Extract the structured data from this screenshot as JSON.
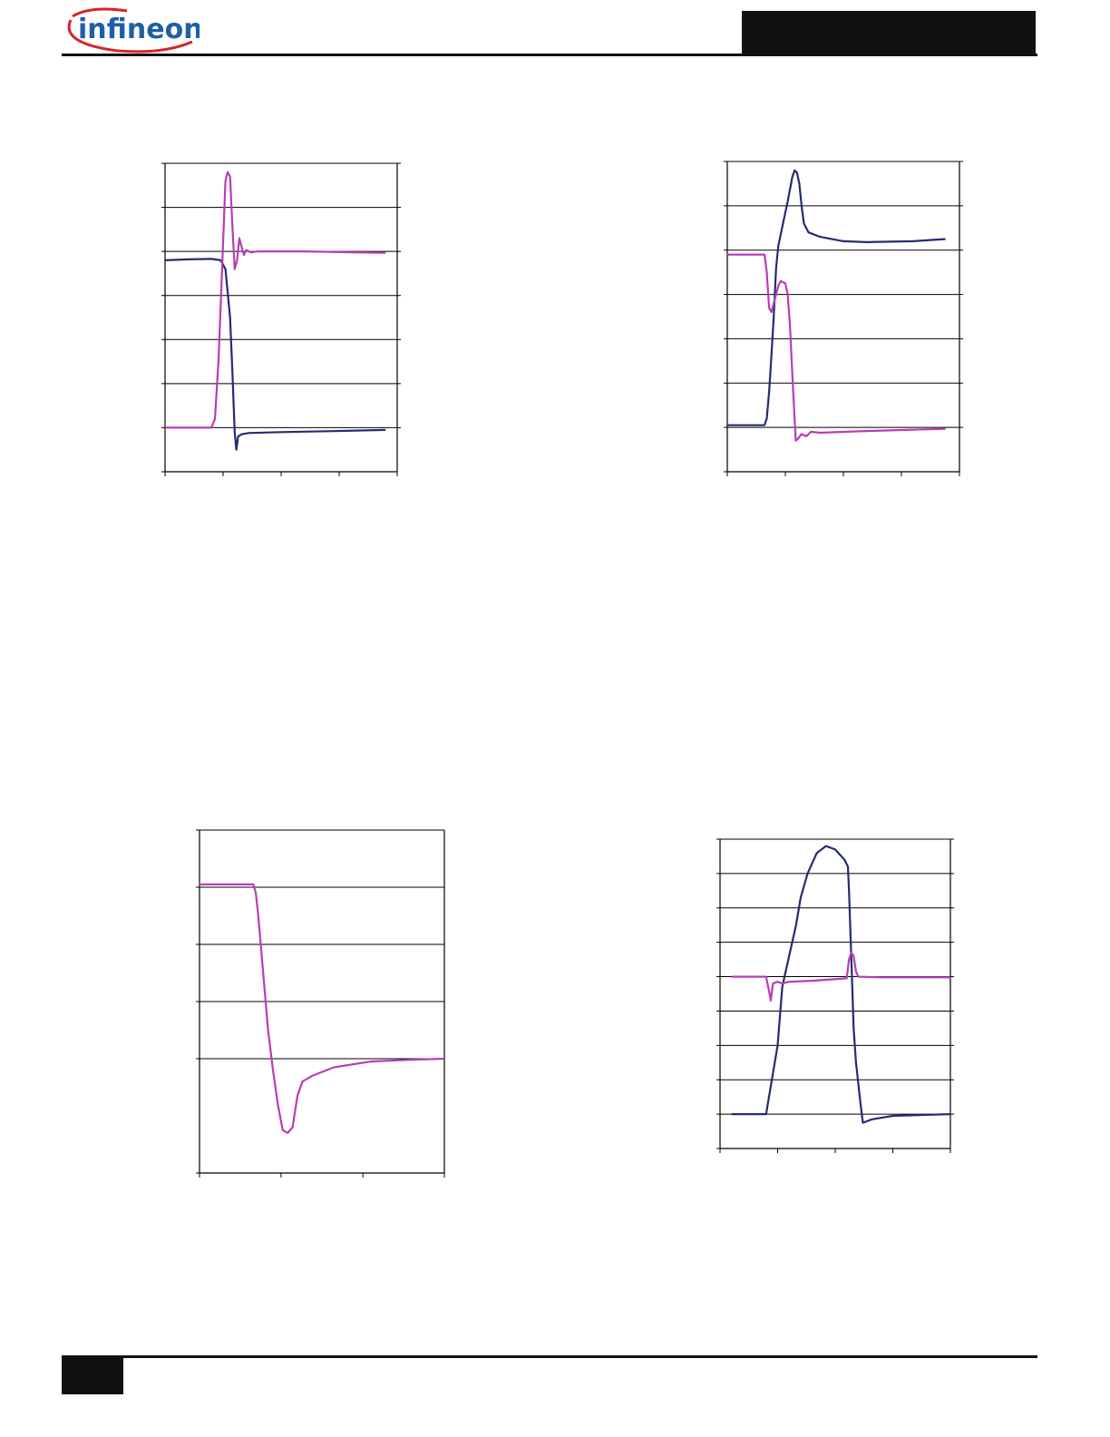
{
  "header": {
    "logo_text": "infineon"
  },
  "colors": {
    "blue_trace": "#242c70",
    "magenta_trace": "#b83db5"
  },
  "chart_data": [
    {
      "type": "line",
      "xlim": [
        0,
        100
      ],
      "ylim": [
        0,
        7
      ],
      "y2lim": [
        0,
        7
      ],
      "x_ticks": [
        0,
        25,
        50,
        75,
        100
      ],
      "y_gridlines": [
        1,
        2,
        3,
        4,
        5,
        6,
        7
      ],
      "series": [
        {
          "color": "#242c70",
          "points": [
            [
              0,
              4.8
            ],
            [
              10,
              4.82
            ],
            [
              20,
              4.83
            ],
            [
              24,
              4.8
            ],
            [
              26,
              4.6
            ],
            [
              28,
              3.5
            ],
            [
              29,
              2.3
            ],
            [
              30,
              0.9
            ],
            [
              30.7,
              0.5
            ],
            [
              31.5,
              0.8
            ],
            [
              33,
              0.85
            ],
            [
              36,
              0.88
            ],
            [
              50,
              0.9
            ],
            [
              70,
              0.92
            ],
            [
              95,
              0.95
            ]
          ]
        },
        {
          "color": "#b83db5",
          "points": [
            [
              0,
              1
            ],
            [
              15,
              1
            ],
            [
              20,
              1
            ],
            [
              21.5,
              1.2
            ],
            [
              23,
              2.5
            ],
            [
              24.5,
              4.5
            ],
            [
              26,
              6.6
            ],
            [
              27,
              6.8
            ],
            [
              28,
              6.7
            ],
            [
              29,
              5.6
            ],
            [
              30,
              4.6
            ],
            [
              31,
              4.8
            ],
            [
              32,
              5.3
            ],
            [
              33,
              5.1
            ],
            [
              34,
              4.92
            ],
            [
              35,
              5.03
            ],
            [
              37,
              4.98
            ],
            [
              40,
              5
            ],
            [
              60,
              5
            ],
            [
              80,
              4.98
            ],
            [
              95,
              4.97
            ]
          ]
        }
      ]
    },
    {
      "type": "line",
      "xlim": [
        0,
        100
      ],
      "ylim": [
        0,
        7
      ],
      "y2lim": [
        0,
        7
      ],
      "x_ticks": [
        0,
        25,
        50,
        75,
        100
      ],
      "y_gridlines": [
        1,
        2,
        3,
        4,
        5,
        6,
        7
      ],
      "series": [
        {
          "color": "#242c70",
          "points": [
            [
              0,
              1.05
            ],
            [
              16,
              1.05
            ],
            [
              17,
              1.2
            ],
            [
              18,
              1.8
            ],
            [
              19,
              2.6
            ],
            [
              20,
              3.5
            ],
            [
              21,
              4.6
            ],
            [
              22,
              5.1
            ],
            [
              24,
              5.6
            ],
            [
              26,
              6.1
            ],
            [
              28,
              6.65
            ],
            [
              29,
              6.8
            ],
            [
              30,
              6.75
            ],
            [
              31,
              6.5
            ],
            [
              32,
              6
            ],
            [
              33,
              5.6
            ],
            [
              35,
              5.4
            ],
            [
              40,
              5.3
            ],
            [
              50,
              5.2
            ],
            [
              60,
              5.18
            ],
            [
              80,
              5.2
            ],
            [
              94,
              5.25
            ]
          ]
        },
        {
          "color": "#b83db5",
          "points": [
            [
              0,
              4.9
            ],
            [
              16,
              4.9
            ],
            [
              17,
              4.5
            ],
            [
              18,
              3.7
            ],
            [
              19,
              3.6
            ],
            [
              20,
              3.8
            ],
            [
              21,
              4
            ],
            [
              22,
              4.2
            ],
            [
              23,
              4.3
            ],
            [
              25,
              4.25
            ],
            [
              26,
              4
            ],
            [
              27,
              3.3
            ],
            [
              28,
              2.2
            ],
            [
              29,
              1.2
            ],
            [
              29.5,
              0.7
            ],
            [
              30,
              0.72
            ],
            [
              32,
              0.85
            ],
            [
              34,
              0.8
            ],
            [
              36,
              0.9
            ],
            [
              40,
              0.88
            ],
            [
              60,
              0.92
            ],
            [
              80,
              0.95
            ],
            [
              94,
              0.97
            ]
          ]
        }
      ]
    },
    {
      "type": "line",
      "xlim": [
        0,
        100
      ],
      "ylim": [
        0,
        6
      ],
      "x_ticks": [
        0,
        33.3,
        66.7,
        100
      ],
      "y_gridlines": [
        2,
        3,
        4,
        5,
        6
      ],
      "series": [
        {
          "color": "#b83db5",
          "points": [
            [
              0,
              5.05
            ],
            [
              10,
              5.05
            ],
            [
              22,
              5.05
            ],
            [
              23,
              4.9
            ],
            [
              24,
              4.5
            ],
            [
              26,
              3.5
            ],
            [
              28,
              2.5
            ],
            [
              30,
              1.8
            ],
            [
              32,
              1.2
            ],
            [
              34,
              0.75
            ],
            [
              36,
              0.7
            ],
            [
              38,
              0.8
            ],
            [
              40,
              1.35
            ],
            [
              42,
              1.6
            ],
            [
              46,
              1.7
            ],
            [
              55,
              1.85
            ],
            [
              70,
              1.95
            ],
            [
              85,
              1.98
            ],
            [
              100,
              2
            ]
          ]
        }
      ]
    },
    {
      "type": "line",
      "xlim": [
        0,
        100
      ],
      "ylim": [
        0,
        9
      ],
      "y2lim": [
        0,
        9
      ],
      "x_ticks": [
        0,
        25,
        50,
        75,
        100
      ],
      "y_gridlines": [
        1,
        2,
        3,
        4,
        5,
        6,
        7,
        8,
        9
      ],
      "series": [
        {
          "color": "#242c70",
          "points": [
            [
              5,
              1
            ],
            [
              20,
              1
            ],
            [
              25,
              3
            ],
            [
              27,
              4.7
            ],
            [
              30,
              5.6
            ],
            [
              33,
              6.5
            ],
            [
              35,
              7.3
            ],
            [
              38,
              8
            ],
            [
              42,
              8.6
            ],
            [
              46,
              8.8
            ],
            [
              50,
              8.7
            ],
            [
              54,
              8.4
            ],
            [
              55.5,
              8.2
            ],
            [
              56,
              7.5
            ],
            [
              57,
              5.5
            ],
            [
              58,
              3.5
            ],
            [
              59,
              2.5
            ],
            [
              60,
              1.9
            ],
            [
              61,
              1.3
            ],
            [
              62,
              0.75
            ],
            [
              66,
              0.85
            ],
            [
              75,
              0.95
            ],
            [
              100,
              1
            ]
          ]
        },
        {
          "color": "#b83db5",
          "points": [
            [
              5,
              5
            ],
            [
              20,
              5
            ],
            [
              21.5,
              4.5
            ],
            [
              22,
              4.3
            ],
            [
              23,
              4.8
            ],
            [
              25,
              4.85
            ],
            [
              27,
              4.8
            ],
            [
              30,
              4.85
            ],
            [
              40,
              4.88
            ],
            [
              55,
              4.95
            ],
            [
              56,
              5.5
            ],
            [
              57,
              5.7
            ],
            [
              58,
              5.6
            ],
            [
              59,
              5.15
            ],
            [
              60,
              5
            ],
            [
              70,
              4.98
            ],
            [
              100,
              4.98
            ]
          ]
        }
      ]
    }
  ]
}
